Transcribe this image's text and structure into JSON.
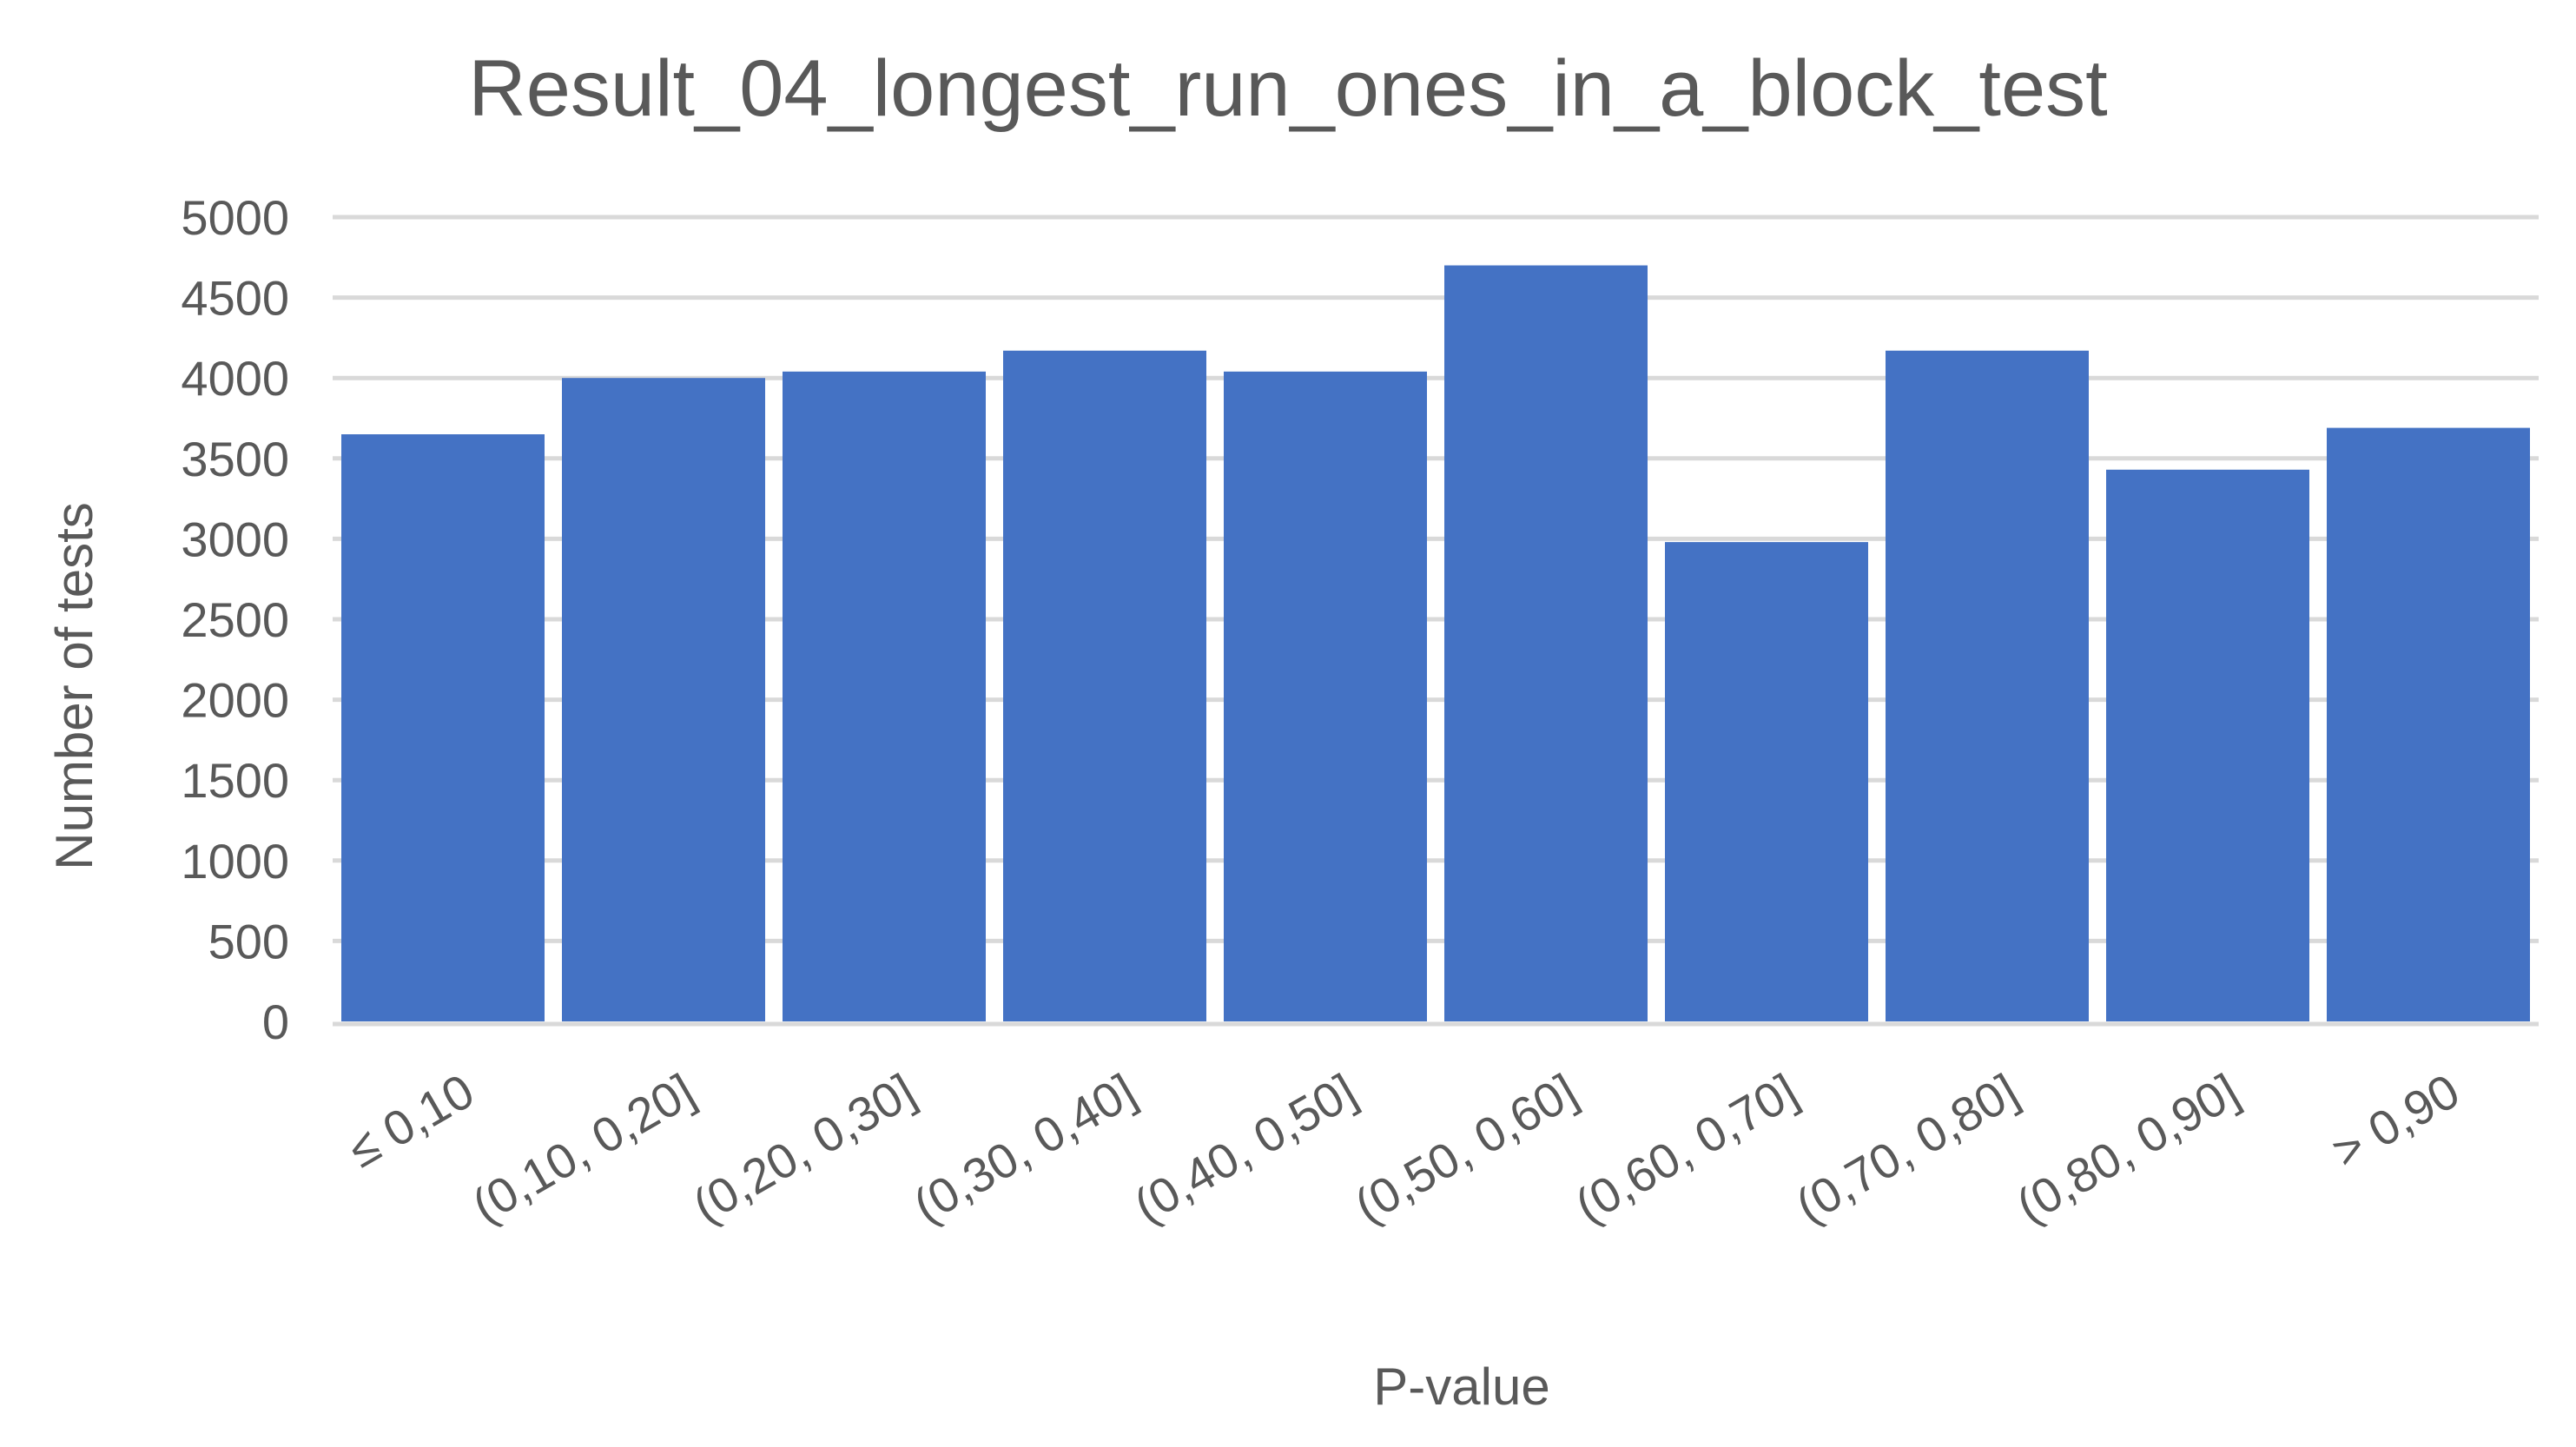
{
  "chart_data": {
    "type": "bar",
    "title": "Result_04_longest_run_ones_in_a_block_test",
    "xlabel": "P-value",
    "ylabel": "Number of tests",
    "categories": [
      "≤ 0,10",
      "(0,10, 0,20]",
      "(0,20, 0,30]",
      "(0,30, 0,40]",
      "(0,40, 0,50]",
      "(0,50, 0,60]",
      "(0,60, 0,70]",
      "(0,70, 0,80]",
      "(0,80, 0,90]",
      "> 0,90"
    ],
    "values": [
      3650,
      4000,
      4040,
      4170,
      4040,
      4700,
      2980,
      4170,
      3430,
      3690
    ],
    "ylim": [
      0,
      5000
    ],
    "yticks": [
      0,
      500,
      1000,
      1500,
      2000,
      2500,
      3000,
      3500,
      4000,
      4500,
      5000
    ],
    "grid": true,
    "legend": "none",
    "bar_color": "#4472c4"
  }
}
